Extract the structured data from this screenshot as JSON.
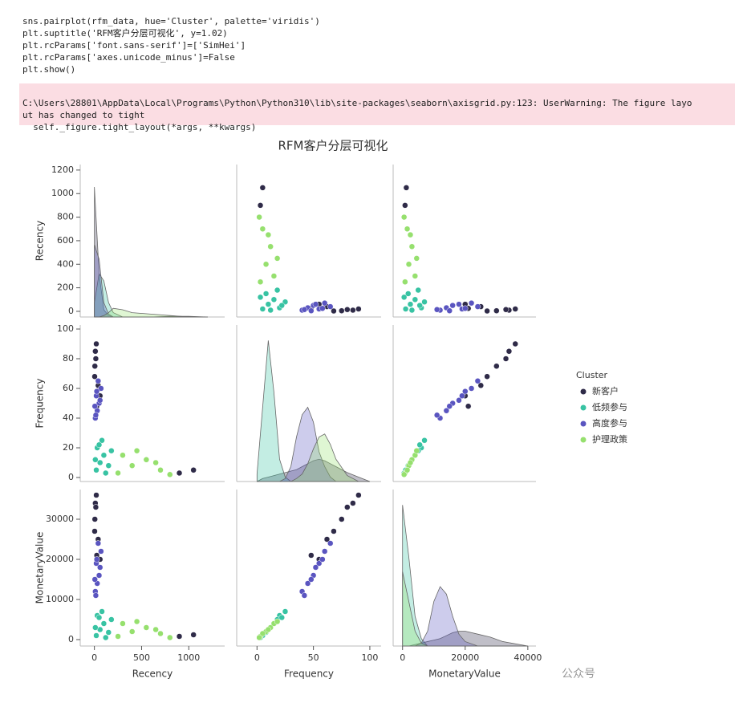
{
  "code": [
    "sns.pairplot(rfm_data, hue='Cluster', palette='viridis')",
    "plt.suptitle('RFM客户分层可视化', y=1.02)",
    "plt.rcParams['font.sans-serif']=['SimHei']",
    "plt.rcParams['axes.unicode_minus']=False",
    "plt.show()"
  ],
  "warning": [
    "C:\\Users\\28801\\AppData\\Local\\Programs\\Python\\Python310\\lib\\site-packages\\seaborn\\axisgrid.py:123: UserWarning: The figure layo",
    "ut has changed to tight",
    "  self._figure.tight_layout(*args, **kwargs)"
  ],
  "watermark": "公众号",
  "chart_data": {
    "type": "pairplot",
    "title": "RFM客户分层可视化",
    "legend_title": "Cluster",
    "variables": [
      {
        "label": "Recency",
        "xlim": [
          -150,
          1380
        ],
        "xticks": [
          0,
          500,
          1000
        ],
        "ylim": [
          -48,
          1247
        ],
        "yticks": [
          0,
          200,
          400,
          600,
          800,
          1000,
          1200
        ]
      },
      {
        "label": "Frequency",
        "xlim": [
          -18,
          110
        ],
        "xticks": [
          0,
          50,
          100
        ],
        "ylim": [
          -2.7,
          102.7
        ],
        "yticks": [
          0,
          20,
          40,
          60,
          80,
          100
        ]
      },
      {
        "label": "MonetaryValue",
        "xlim": [
          -3000,
          42600
        ],
        "xticks": [
          0,
          20000,
          40000
        ],
        "ylim": [
          -1600,
          37400
        ],
        "yticks": [
          0,
          10000,
          20000,
          30000
        ]
      }
    ],
    "series": [
      {
        "name": "新客户",
        "color": "#2f2b48",
        "points": [
          [
            5,
            75,
            30000
          ],
          [
            10,
            85,
            34000
          ],
          [
            20,
            90,
            36000
          ],
          [
            3,
            68,
            27000
          ],
          [
            40,
            62,
            25000
          ],
          [
            15,
            80,
            33000
          ],
          [
            60,
            55,
            20000
          ],
          [
            1050,
            5,
            1200
          ],
          [
            900,
            3,
            800
          ],
          [
            25,
            48,
            21000
          ]
        ]
      },
      {
        "name": "低频参与",
        "color": "#38c3a3",
        "points": [
          [
            20,
            5,
            1000
          ],
          [
            60,
            10,
            2500
          ],
          [
            100,
            15,
            4000
          ],
          [
            150,
            8,
            1800
          ],
          [
            30,
            20,
            6000
          ],
          [
            80,
            25,
            7000
          ],
          [
            120,
            3,
            500
          ],
          [
            10,
            12,
            3000
          ],
          [
            180,
            18,
            5000
          ],
          [
            50,
            22,
            5500
          ]
        ]
      },
      {
        "name": "高度参与",
        "color": "#5a55c0",
        "points": [
          [
            10,
            40,
            12000
          ],
          [
            30,
            45,
            14000
          ],
          [
            50,
            50,
            16000
          ],
          [
            20,
            55,
            19000
          ],
          [
            70,
            60,
            22000
          ],
          [
            5,
            48,
            15000
          ],
          [
            40,
            65,
            24000
          ],
          [
            15,
            42,
            11000
          ],
          [
            60,
            52,
            18000
          ],
          [
            25,
            58,
            20000
          ]
        ]
      },
      {
        "name": "护理政策",
        "color": "#96e06e",
        "points": [
          [
            250,
            3,
            800
          ],
          [
            400,
            8,
            2000
          ],
          [
            550,
            12,
            3000
          ],
          [
            700,
            5,
            1500
          ],
          [
            300,
            15,
            4000
          ],
          [
            800,
            2,
            500
          ],
          [
            450,
            18,
            4500
          ],
          [
            650,
            10,
            2500
          ]
        ]
      }
    ],
    "diagonal": [
      {
        "x": [
          0,
          50,
          100,
          150,
          200,
          300,
          400,
          600,
          800,
          1000,
          1200
        ],
        "ylim": [
          0,
          1
        ],
        "densities": [
          [
            0.9,
            0.3,
            0.05,
            0.01,
            0,
            0,
            0,
            0,
            0.005,
            0.005,
            0
          ],
          [
            0.1,
            0.3,
            0.25,
            0.1,
            0.03,
            0,
            0,
            0,
            0,
            0,
            0
          ],
          [
            0.5,
            0.4,
            0.1,
            0.02,
            0,
            0,
            0,
            0,
            0,
            0,
            0
          ],
          [
            0,
            0,
            0.01,
            0.03,
            0.06,
            0.05,
            0.03,
            0.02,
            0.01,
            0,
            0
          ]
        ]
      },
      {
        "x": [
          0,
          5,
          10,
          15,
          20,
          25,
          30,
          35,
          40,
          45,
          50,
          55,
          60,
          65,
          70,
          80,
          90,
          100
        ],
        "ylim": [
          0,
          1
        ],
        "densities": [
          [
            0,
            0.02,
            0.03,
            0.04,
            0.05,
            0.06,
            0.07,
            0.08,
            0.1,
            0.12,
            0.14,
            0.15,
            0.14,
            0.12,
            0.1,
            0.06,
            0.03,
            0
          ],
          [
            0.05,
            0.5,
            0.95,
            0.6,
            0.15,
            0.03,
            0,
            0,
            0,
            0,
            0,
            0,
            0,
            0,
            0,
            0,
            0,
            0
          ],
          [
            0,
            0,
            0,
            0,
            0,
            0.02,
            0.1,
            0.3,
            0.45,
            0.5,
            0.4,
            0.2,
            0.1,
            0.03,
            0,
            0,
            0,
            0
          ],
          [
            0,
            0,
            0,
            0,
            0,
            0,
            0,
            0.02,
            0.05,
            0.12,
            0.22,
            0.3,
            0.32,
            0.25,
            0.15,
            0.04,
            0,
            0
          ]
        ]
      },
      {
        "x": [
          0,
          2000,
          4000,
          6000,
          8000,
          10000,
          12000,
          14000,
          16000,
          18000,
          20000,
          24000,
          28000,
          32000,
          40000
        ],
        "ylim": [
          0,
          1
        ],
        "densities": [
          [
            0,
            0,
            0.01,
            0.02,
            0.03,
            0.04,
            0.05,
            0.07,
            0.09,
            0.1,
            0.1,
            0.08,
            0.06,
            0.03,
            0
          ],
          [
            0.95,
            0.6,
            0.2,
            0.05,
            0,
            0,
            0,
            0,
            0,
            0,
            0,
            0,
            0,
            0,
            0
          ],
          [
            0,
            0,
            0,
            0.02,
            0.1,
            0.3,
            0.4,
            0.35,
            0.2,
            0.08,
            0.03,
            0,
            0,
            0,
            0
          ],
          [
            0.5,
            0.3,
            0.1,
            0.02,
            0,
            0,
            0,
            0,
            0,
            0,
            0,
            0,
            0,
            0,
            0
          ]
        ]
      }
    ]
  }
}
